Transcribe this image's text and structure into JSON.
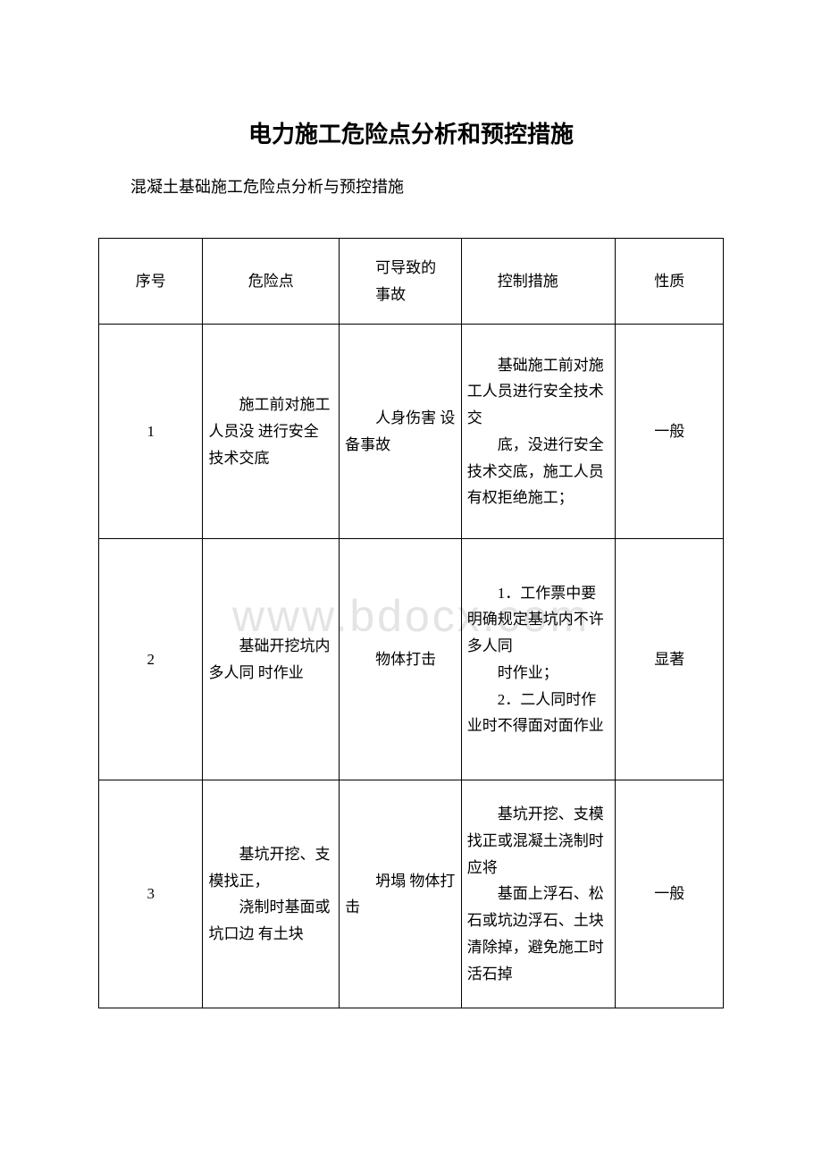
{
  "document": {
    "title": "电力施工危险点分析和预控措施",
    "subtitle": "混凝土基础施工危险点分析与预控措施",
    "watermark": "www.bdocx.com",
    "colors": {
      "background": "#ffffff",
      "text": "#000000",
      "border": "#000000",
      "watermark": "#e4e4e4"
    },
    "typography": {
      "title_fontsize": 26,
      "title_weight": "bold",
      "title_family": "SimHei",
      "body_fontsize": 17,
      "body_family": "SimSun",
      "subtitle_fontsize": 18,
      "line_height": 1.75
    },
    "table": {
      "type": "table",
      "column_widths_pct": [
        14.5,
        19,
        17,
        21.5,
        15
      ],
      "columns": {
        "no": "序号",
        "risk": "危险点",
        "accident_line1": "可导致的",
        "accident_line2": "事故",
        "control": "控制措施",
        "nature": "性质"
      },
      "rows": [
        {
          "no": "1",
          "risk": "施工前对施工人员没 进行安全技术交底",
          "accident": "人身伤害 设备事故",
          "control": "基础施工前对施工人员进行安全技术交",
          "control_b": "底，没进行安全技术交底，施工人员有权拒绝施工；",
          "nature": "一般"
        },
        {
          "no": "2",
          "risk": "基础开挖坑内多人同 时作业",
          "accident": "物体打击",
          "control": "1．工作票中要明确规定基坑内不许多人同",
          "control_b": "时作业；",
          "control_c": "2．二人同时作业时不得面对面作业",
          "nature": "显著"
        },
        {
          "no": "3",
          "risk_a": "基坑开挖、支模找正，",
          "risk_b": "浇制时基面或坑口边 有土块",
          "accident": "坍塌 物体打击",
          "control": "基坑开挖、支模找正或混凝土浇制时应将",
          "control_b": "基面上浮石、松石或坑边浮石、土块清除掉，避免施工时活石掉",
          "nature": "一般"
        }
      ]
    }
  }
}
